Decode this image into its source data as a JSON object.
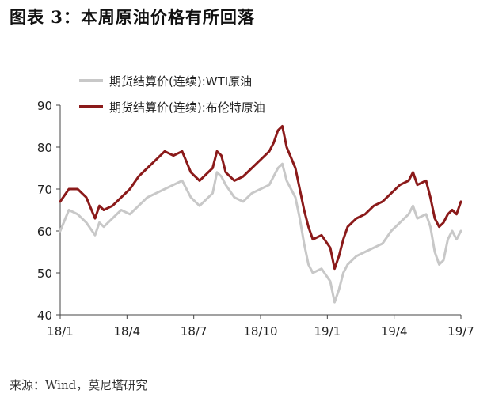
{
  "title": "图表 3：本周原油价格有所回落",
  "source": "来源：Wind，莫尼塔研究",
  "chart_data": {
    "type": "line",
    "x_tick_labels": [
      "18/1",
      "18/4",
      "18/7",
      "18/10",
      "19/1",
      "19/4",
      "19/7"
    ],
    "y_ticks": [
      40,
      50,
      60,
      70,
      80,
      90
    ],
    "ylim": [
      40,
      90
    ],
    "grid": false,
    "legend_position": "top-left",
    "series": [
      {
        "name": "期货结算价(连续):WTI原油",
        "color": "#c8c8c8",
        "points": [
          [
            0,
            60
          ],
          [
            2,
            65
          ],
          [
            4,
            64
          ],
          [
            6,
            62
          ],
          [
            8,
            59
          ],
          [
            9,
            62
          ],
          [
            10,
            61
          ],
          [
            12,
            63
          ],
          [
            14,
            65
          ],
          [
            16,
            64
          ],
          [
            18,
            66
          ],
          [
            20,
            68
          ],
          [
            22,
            69
          ],
          [
            24,
            70
          ],
          [
            26,
            71
          ],
          [
            28,
            72
          ],
          [
            30,
            68
          ],
          [
            32,
            66
          ],
          [
            33,
            67
          ],
          [
            35,
            69
          ],
          [
            36,
            74
          ],
          [
            37,
            73
          ],
          [
            38,
            71
          ],
          [
            40,
            68
          ],
          [
            42,
            67
          ],
          [
            44,
            69
          ],
          [
            46,
            70
          ],
          [
            48,
            71
          ],
          [
            49,
            73
          ],
          [
            50,
            75
          ],
          [
            51,
            76
          ],
          [
            52,
            72
          ],
          [
            54,
            68
          ],
          [
            55,
            63
          ],
          [
            56,
            57
          ],
          [
            57,
            52
          ],
          [
            58,
            50
          ],
          [
            60,
            51
          ],
          [
            62,
            48
          ],
          [
            63,
            43
          ],
          [
            64,
            46
          ],
          [
            65,
            50
          ],
          [
            66,
            52
          ],
          [
            68,
            54
          ],
          [
            70,
            55
          ],
          [
            72,
            56
          ],
          [
            74,
            57
          ],
          [
            76,
            60
          ],
          [
            78,
            62
          ],
          [
            80,
            64
          ],
          [
            81,
            66
          ],
          [
            82,
            63
          ],
          [
            84,
            64
          ],
          [
            85,
            61
          ],
          [
            86,
            55
          ],
          [
            87,
            52
          ],
          [
            88,
            53
          ],
          [
            89,
            58
          ],
          [
            90,
            60
          ],
          [
            91,
            58
          ],
          [
            92,
            60
          ]
        ]
      },
      {
        "name": "期货结算价(连续):布伦特原油",
        "color": "#8b1a1a",
        "points": [
          [
            0,
            67
          ],
          [
            2,
            70
          ],
          [
            4,
            70
          ],
          [
            6,
            68
          ],
          [
            8,
            63
          ],
          [
            9,
            66
          ],
          [
            10,
            65
          ],
          [
            12,
            66
          ],
          [
            14,
            68
          ],
          [
            16,
            70
          ],
          [
            18,
            73
          ],
          [
            20,
            75
          ],
          [
            22,
            77
          ],
          [
            24,
            79
          ],
          [
            26,
            78
          ],
          [
            28,
            79
          ],
          [
            30,
            74
          ],
          [
            32,
            72
          ],
          [
            33,
            73
          ],
          [
            35,
            75
          ],
          [
            36,
            79
          ],
          [
            37,
            78
          ],
          [
            38,
            74
          ],
          [
            40,
            72
          ],
          [
            42,
            73
          ],
          [
            44,
            75
          ],
          [
            46,
            77
          ],
          [
            48,
            79
          ],
          [
            49,
            81
          ],
          [
            50,
            84
          ],
          [
            51,
            85
          ],
          [
            52,
            80
          ],
          [
            54,
            75
          ],
          [
            55,
            70
          ],
          [
            56,
            65
          ],
          [
            57,
            61
          ],
          [
            58,
            58
          ],
          [
            60,
            59
          ],
          [
            62,
            56
          ],
          [
            63,
            51
          ],
          [
            64,
            54
          ],
          [
            65,
            58
          ],
          [
            66,
            61
          ],
          [
            68,
            63
          ],
          [
            70,
            64
          ],
          [
            72,
            66
          ],
          [
            74,
            67
          ],
          [
            76,
            69
          ],
          [
            78,
            71
          ],
          [
            80,
            72
          ],
          [
            81,
            74
          ],
          [
            82,
            71
          ],
          [
            84,
            72
          ],
          [
            85,
            68
          ],
          [
            86,
            63
          ],
          [
            87,
            61
          ],
          [
            88,
            62
          ],
          [
            89,
            64
          ],
          [
            90,
            65
          ],
          [
            91,
            64
          ],
          [
            92,
            67
          ]
        ]
      }
    ]
  }
}
